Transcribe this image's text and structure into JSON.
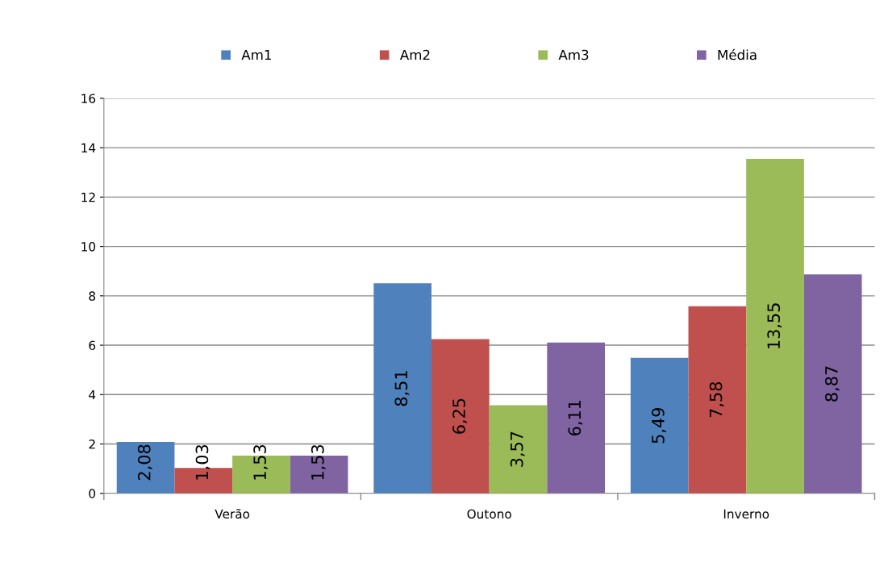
{
  "chart_data": {
    "type": "bar",
    "categories": [
      "Verão",
      "Outono",
      "Inverno"
    ],
    "series": [
      {
        "name": "Am1",
        "color": "#4f81bd",
        "values": [
          2.08,
          8.51,
          5.49
        ],
        "value_labels": [
          "2,08",
          "8,51",
          "5,49"
        ]
      },
      {
        "name": "Am2",
        "color": "#c0504d",
        "values": [
          1.03,
          6.25,
          7.58
        ],
        "value_labels": [
          "1,03",
          "6,25",
          "7,58"
        ]
      },
      {
        "name": "Am3",
        "color": "#9bbb59",
        "values": [
          1.53,
          3.57,
          13.55
        ],
        "value_labels": [
          "1,53",
          "3,57",
          "13,55"
        ]
      },
      {
        "name": "Média",
        "color": "#8064a2",
        "values": [
          1.53,
          6.11,
          8.87
        ],
        "value_labels": [
          "1,53",
          "6,11",
          "8,87"
        ]
      }
    ],
    "ylim": [
      0,
      16
    ],
    "yticks": [
      0,
      2,
      4,
      6,
      8,
      10,
      12,
      14,
      16
    ],
    "grid": "y",
    "legend": "top"
  }
}
